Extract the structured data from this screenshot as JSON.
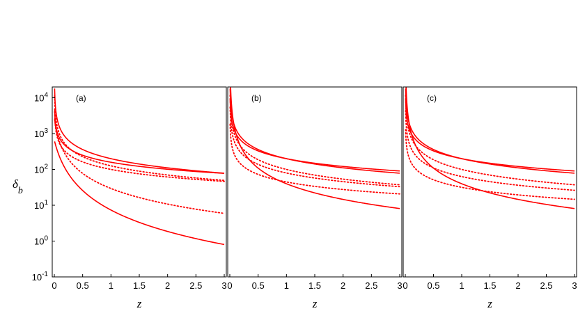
{
  "chart_data": {
    "type": "line",
    "ylabel": "δ_b",
    "ylabel_main": "δ",
    "ylabel_sub": "b",
    "xlabel": "z",
    "y_scale": "log",
    "line_color": "#ff0000",
    "ylim": [
      0.1,
      20000
    ],
    "y_ticks": [
      {
        "base": "10",
        "exp": "4",
        "value": 10000
      },
      {
        "base": "10",
        "exp": "3",
        "value": 1000
      },
      {
        "base": "10",
        "exp": "2",
        "value": 100
      },
      {
        "base": "10",
        "exp": "1",
        "value": 10
      },
      {
        "base": "10",
        "exp": "0",
        "value": 1
      },
      {
        "base": "10",
        "exp": "-1",
        "value": 0.1
      }
    ],
    "x_ticks": [
      "0",
      "0.5",
      "1",
      "1.5",
      "2",
      "2.5",
      "3"
    ],
    "panels": [
      {
        "label": "(a)",
        "xlim": [
          0,
          3
        ],
        "series": [
          {
            "style": "solid",
            "a": 1.0,
            "p": 2.2,
            "c": 0.15
          },
          {
            "style": "solid",
            "a": 2.3,
            "p": 0.85,
            "c": 0.0
          },
          {
            "style": "solid",
            "a": 2.2,
            "p": 0.65,
            "c": 0.0
          },
          {
            "style": "dotted",
            "a": 1.5,
            "p": 1.5,
            "c": 0.05
          },
          {
            "style": "dotted",
            "a": 2.1,
            "p": 0.85,
            "c": 0.0
          },
          {
            "style": "dotted",
            "a": 2.0,
            "p": 0.7,
            "c": 0.0
          }
        ]
      },
      {
        "label": "(b)",
        "xlim": [
          0,
          3
        ],
        "series": [
          {
            "style": "solid",
            "a": 1.6,
            "p": 1.45,
            "c": 0.0
          },
          {
            "style": "solid",
            "a": 2.3,
            "p": 0.85,
            "c": 0.0
          },
          {
            "style": "solid",
            "a": 2.3,
            "p": 0.72,
            "c": 0.0
          },
          {
            "style": "dotted",
            "a": 2.0,
            "p": 0.9,
            "c": 0.0
          },
          {
            "style": "dotted",
            "a": 1.9,
            "p": 0.8,
            "c": 0.0
          },
          {
            "style": "dotted",
            "a": 1.65,
            "p": 0.7,
            "c": 0.0
          }
        ]
      },
      {
        "label": "(c)",
        "xlim": [
          0,
          3
        ],
        "series": [
          {
            "style": "solid",
            "a": 1.6,
            "p": 1.45,
            "c": 0.0
          },
          {
            "style": "solid",
            "a": 2.3,
            "p": 0.85,
            "c": 0.0
          },
          {
            "style": "solid",
            "a": 2.3,
            "p": 0.72,
            "c": 0.0
          },
          {
            "style": "dotted",
            "a": 2.0,
            "p": 0.9,
            "c": 0.0
          },
          {
            "style": "dotted",
            "a": 1.8,
            "p": 0.8,
            "c": 0.0
          },
          {
            "style": "dotted",
            "a": 1.5,
            "p": 0.7,
            "c": 0.0
          }
        ]
      }
    ]
  }
}
